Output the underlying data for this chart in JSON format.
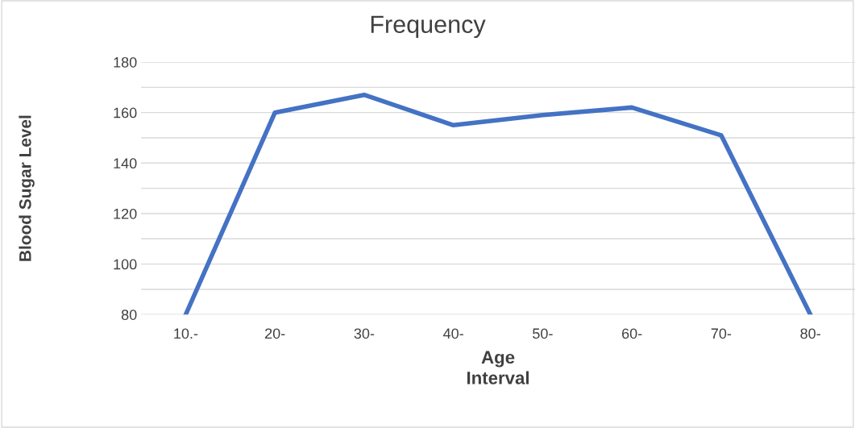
{
  "chart_data": {
    "type": "line",
    "title": "Frequency",
    "xlabel": "Age\nInterval",
    "ylabel": "Blood Sugar Level",
    "categories": [
      "10.-",
      "20-",
      "30-",
      "40-",
      "50-",
      "60-",
      "70-",
      "80-"
    ],
    "series": [
      {
        "color": "#4472c4",
        "values": [
          80,
          160,
          167,
          155,
          159,
          162,
          151,
          80
        ]
      }
    ],
    "ylim": [
      80,
      180
    ],
    "yticks": [
      80,
      {
        "value": 90,
        "label": null
      },
      100,
      {
        "value": 110,
        "label": null
      },
      120,
      {
        "value": 130,
        "label": null
      },
      140,
      {
        "value": 150,
        "label": null
      },
      160,
      {
        "value": 170,
        "label": null
      },
      180
    ],
    "grid": "y",
    "marker": "none",
    "line_style": "solid"
  }
}
